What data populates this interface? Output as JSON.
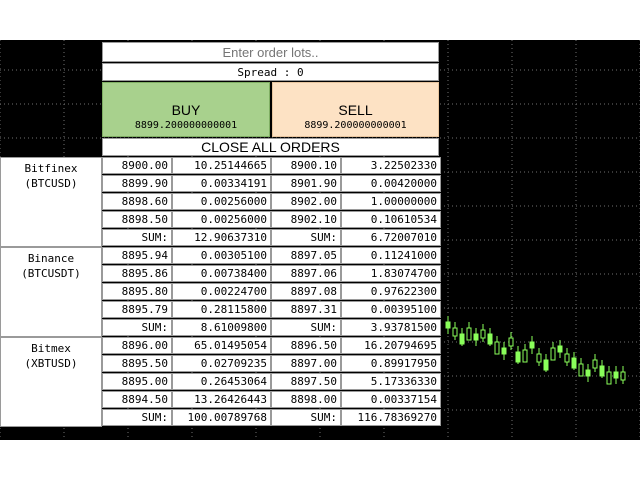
{
  "order_input": {
    "placeholder": "Enter order lots.."
  },
  "spread_text": "Spread : 0",
  "buy": {
    "label": "BUY",
    "price": "8899.200000000001"
  },
  "sell": {
    "label": "SELL",
    "price": "8899.200000000001"
  },
  "close_all_label": "CLOSE ALL ORDERS",
  "colors": {
    "buy_bg": "#a8d18d",
    "sell_bg": "#fde2c4",
    "chart_bg": "#000000",
    "candle": "#8aff5a"
  },
  "exchanges": [
    {
      "name": "Bitfinex",
      "symbol": "(BTCUSD)",
      "rows": [
        [
          "8900.00",
          "10.25144665",
          "8900.10",
          "3.22502330"
        ],
        [
          "8899.90",
          "0.00334191",
          "8901.90",
          "0.00420000"
        ],
        [
          "8898.60",
          "0.00256000",
          "8902.00",
          "1.00000000"
        ],
        [
          "8898.50",
          "0.00256000",
          "8902.10",
          "0.10610534"
        ]
      ],
      "sum_label": "SUM:",
      "sum_bid": "12.90637310",
      "sum_ask": "6.72007010"
    },
    {
      "name": "Binance",
      "symbol": "(BTCUSDT)",
      "rows": [
        [
          "8895.94",
          "0.00305100",
          "8897.05",
          "0.11241000"
        ],
        [
          "8895.86",
          "0.00738400",
          "8897.06",
          "1.83074700"
        ],
        [
          "8895.80",
          "0.00224700",
          "8897.08",
          "0.97622300"
        ],
        [
          "8895.79",
          "0.28115800",
          "8897.31",
          "0.00395100"
        ]
      ],
      "sum_label": "SUM:",
      "sum_bid": "8.61009800",
      "sum_ask": "3.93781500"
    },
    {
      "name": "Bitmex",
      "symbol": "(XBTUSD)",
      "rows": [
        [
          "8896.00",
          "65.01495054",
          "8896.50",
          "16.20794695"
        ],
        [
          "8895.50",
          "0.02709235",
          "8897.00",
          "0.89917950"
        ],
        [
          "8895.00",
          "0.26453064",
          "8897.50",
          "5.17336330"
        ],
        [
          "8894.50",
          "13.26426443",
          "8898.00",
          "0.00337154"
        ]
      ],
      "sum_label": "SUM:",
      "sum_bid": "100.00789768",
      "sum_ask": "116.78369270"
    }
  ]
}
